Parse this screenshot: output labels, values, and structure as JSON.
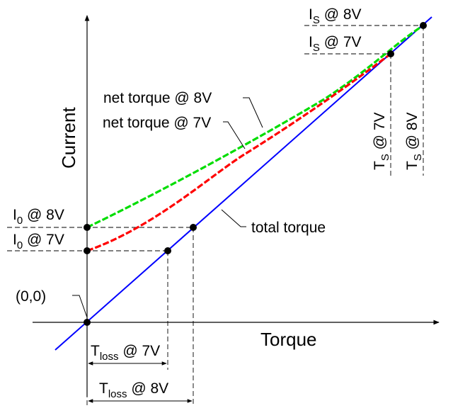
{
  "axes": {
    "x_title": "Torque",
    "y_title": "Current"
  },
  "labels": {
    "origin": "(0,0)",
    "i0_8v": {
      "main": "I",
      "sub": "0",
      "rest": " @ 8V"
    },
    "i0_7v": {
      "main": "I",
      "sub": "0",
      "rest": " @ 7V"
    },
    "is_8v": {
      "main": "I",
      "sub": "S",
      "rest": " @ 8V"
    },
    "is_7v": {
      "main": "I",
      "sub": "S",
      "rest": " @ 7V"
    },
    "ts_7v": {
      "main": "T",
      "sub": "S",
      "rest": " @ 7V"
    },
    "ts_8v": {
      "main": "T",
      "sub": "S",
      "rest": " @ 8V"
    },
    "tloss_7v": {
      "main": "T",
      "sub": "loss",
      "rest": " @ 7V"
    },
    "tloss_8v": {
      "main": "T",
      "sub": "loss",
      "rest": " @ 8V"
    },
    "net_torque_8v": "net torque @ 8V",
    "net_torque_7v": "net torque @ 7V",
    "total_torque": "total torque"
  },
  "colors": {
    "total_torque": "#0000ff",
    "net_torque_8v": "#00dd00",
    "net_torque_7v": "#ff0000",
    "axes": "#000000",
    "guides": "#000000"
  }
}
